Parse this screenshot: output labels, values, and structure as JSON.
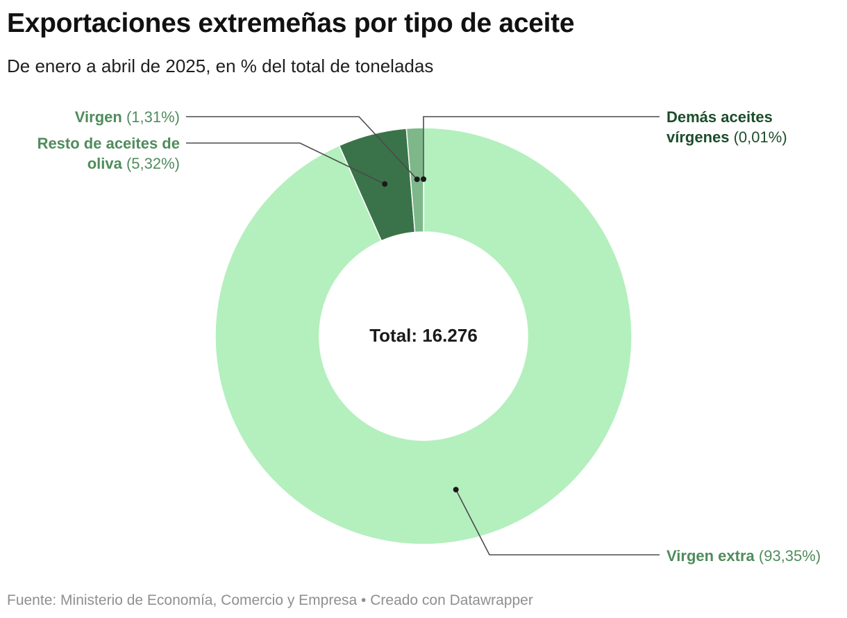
{
  "title": "Exportaciones extremeñas por tipo de aceite",
  "subtitle": "De enero a abril de 2025, en % del total de toneladas",
  "source": "Fuente: Ministerio de Economía, Comercio y Empresa • Creado con Datawrapper",
  "colors": {
    "virgen_extra": "#b4efbe",
    "resto": "#3a7349",
    "virgen": "#7db78a",
    "demas": "#2c6438",
    "label_light": "#4f8c5c",
    "label_dark": "#1b4d2a",
    "leader": "#4a4a4a"
  },
  "chart_data": {
    "type": "pie",
    "variant": "donut",
    "title": "Exportaciones extremeñas por tipo de aceite",
    "center_label": "Total: 16.276",
    "total_tonnes": 16276,
    "unit": "% del total de toneladas",
    "slices": [
      {
        "name": "Demás aceites vírgenes",
        "value": 0.01,
        "value_label": "(0,01%)",
        "color": "#2c6438",
        "label_color": "#1b4d2a"
      },
      {
        "name": "Virgen extra",
        "value": 93.35,
        "value_label": "(93,35%)",
        "color": "#b4efbe",
        "label_color": "#4f8c5c"
      },
      {
        "name": "Resto de aceites de oliva",
        "value": 5.32,
        "value_label": "(5,32%)",
        "color": "#3a7349",
        "label_color": "#4f8c5c"
      },
      {
        "name": "Virgen",
        "value": 1.31,
        "value_label": "(1,31%)",
        "color": "#7db78a",
        "label_color": "#4f8c5c"
      }
    ]
  }
}
